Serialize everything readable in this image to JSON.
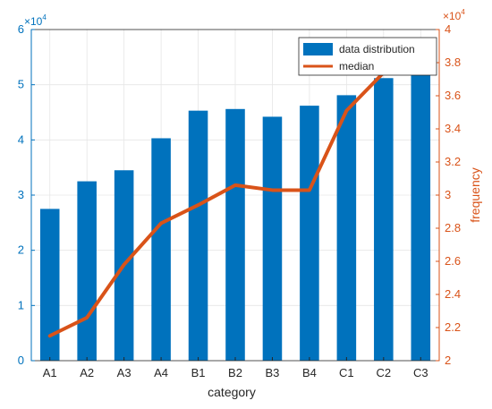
{
  "chart_data": {
    "type": "bar",
    "xlabel": "category",
    "ylabel": "",
    "y2label": "frequency",
    "categories": [
      "A1",
      "A2",
      "A3",
      "A4",
      "B1",
      "B2",
      "B3",
      "B4",
      "C1",
      "C2",
      "C3"
    ],
    "ylim": [
      0,
      60000
    ],
    "y_ticks": [
      0,
      1,
      2,
      3,
      4,
      5,
      6
    ],
    "y_exponent_label": "×10",
    "y_exponent_power": "4",
    "y2lim": [
      20000,
      40000
    ],
    "y2_ticks": [
      2,
      2.2,
      2.4,
      2.6,
      2.8,
      3,
      3.2,
      3.4,
      3.6,
      3.8,
      4
    ],
    "y2_exponent_label": "×10",
    "y2_exponent_power": "4",
    "grid": true,
    "legend_position": "top-right",
    "series": [
      {
        "name": "data distribution",
        "type": "bar",
        "axis": "left",
        "color": "#0072BD",
        "values": [
          27500,
          32500,
          34500,
          40300,
          45300,
          45600,
          44200,
          46200,
          48100,
          51200,
          52000
        ]
      },
      {
        "name": "median",
        "type": "line",
        "axis": "right",
        "color": "#D95319",
        "values": [
          21500,
          22600,
          25800,
          28300,
          29400,
          30600,
          30300,
          30300,
          35100,
          37400,
          38500
        ]
      }
    ],
    "colors": {
      "left_axis": "#0072BD",
      "right_axis": "#D95319",
      "grid": "#e6e6e6",
      "axis": "#262626"
    }
  }
}
